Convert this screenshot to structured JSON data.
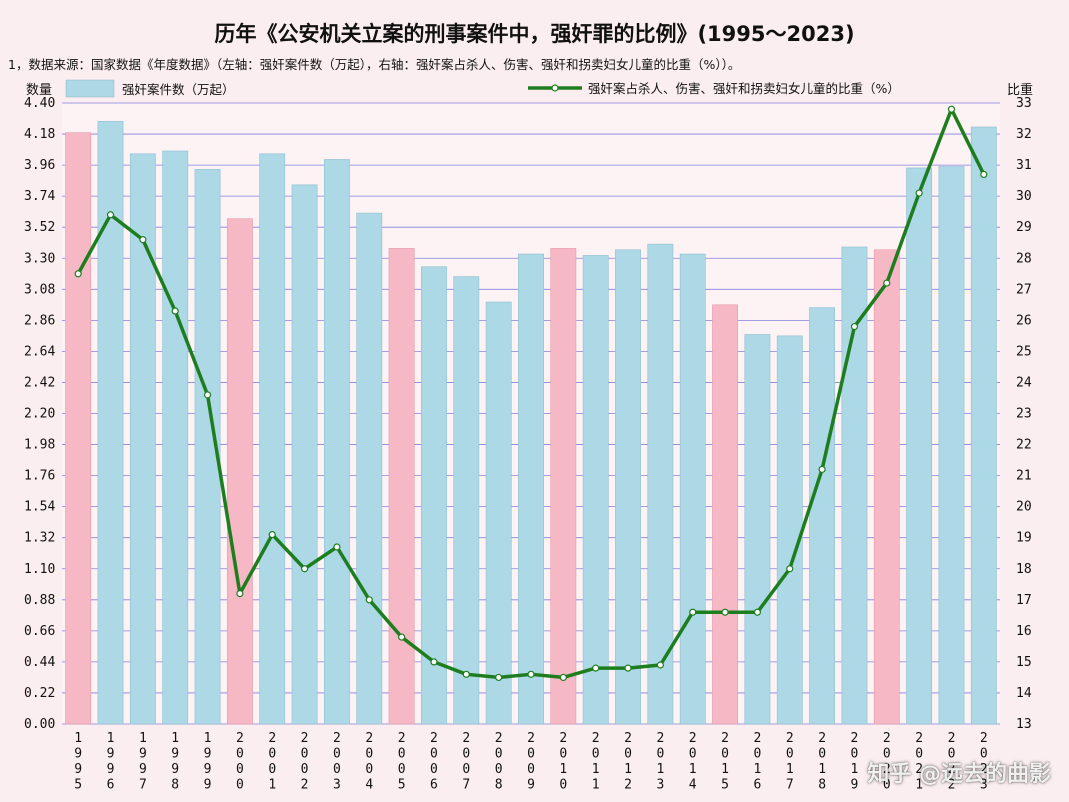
{
  "chart_data": {
    "type": "bar",
    "title": "历年《公安机关立案的刑事案件中，强奸罪的比例》(1995～2023)",
    "subtitle": "1，数据来源：国家数据《年度数据》（左轴：强奸案件数（万起），右轴：强奸案占杀人、伤害、强奸和拐卖妇女儿童的比重（%））。",
    "y_left_label": "数量",
    "y_right_label": "比重",
    "y_left_lim": [
      0,
      4.4
    ],
    "y_left_ticks": [
      "0.00",
      "0.22",
      "0.44",
      "0.66",
      "0.88",
      "1.10",
      "1.32",
      "1.54",
      "1.76",
      "1.98",
      "2.20",
      "2.42",
      "2.64",
      "2.86",
      "3.08",
      "3.30",
      "3.52",
      "3.74",
      "3.96",
      "4.18",
      "4.40"
    ],
    "y_right_lim": [
      13,
      33
    ],
    "y_right_ticks": [
      "13",
      "14",
      "15",
      "16",
      "17",
      "18",
      "19",
      "20",
      "21",
      "22",
      "23",
      "24",
      "25",
      "26",
      "27",
      "28",
      "29",
      "30",
      "31",
      "32",
      "33"
    ],
    "grid": true,
    "legend_position": "top",
    "categories": [
      "1995",
      "1996",
      "1997",
      "1998",
      "1999",
      "2000",
      "2001",
      "2002",
      "2003",
      "2004",
      "2005",
      "2006",
      "2007",
      "2008",
      "2009",
      "2010",
      "2011",
      "2012",
      "2013",
      "2014",
      "2015",
      "2016",
      "2017",
      "2018",
      "2019",
      "2020",
      "2021",
      "2022",
      "2023"
    ],
    "series": [
      {
        "name": "强奸案件数（万起）",
        "type": "bar",
        "axis": "left",
        "values": [
          4.19,
          4.27,
          4.04,
          4.06,
          3.93,
          3.58,
          4.04,
          3.82,
          4.0,
          3.62,
          3.37,
          3.24,
          3.17,
          2.99,
          3.33,
          3.37,
          3.32,
          3.36,
          3.4,
          3.33,
          2.97,
          2.76,
          2.75,
          2.95,
          3.38,
          3.36,
          3.94,
          3.95,
          4.23
        ]
      },
      {
        "name": "强奸案占杀人、伤害、强奸和拐卖妇女儿童的比重（%）",
        "type": "line",
        "axis": "right",
        "values": [
          27.5,
          29.4,
          28.6,
          26.3,
          23.6,
          17.2,
          19.1,
          18.0,
          18.7,
          17.0,
          15.8,
          15.0,
          14.6,
          14.5,
          14.6,
          14.5,
          14.8,
          14.8,
          14.9,
          16.6,
          16.6,
          16.6,
          18.0,
          21.2,
          25.8,
          27.2,
          30.1,
          32.8,
          30.7
        ]
      }
    ],
    "highlight_years": [
      "1995",
      "2000",
      "2005",
      "2010",
      "2015",
      "2020"
    ]
  },
  "colors": {
    "bar_normal": "#add8e6",
    "bar_highlight": "#f6b8c4",
    "line": "#1e7d1e",
    "grid": "#5b5bd6",
    "background": "#fbeef0"
  },
  "watermark": "知乎 @远去的曲影"
}
